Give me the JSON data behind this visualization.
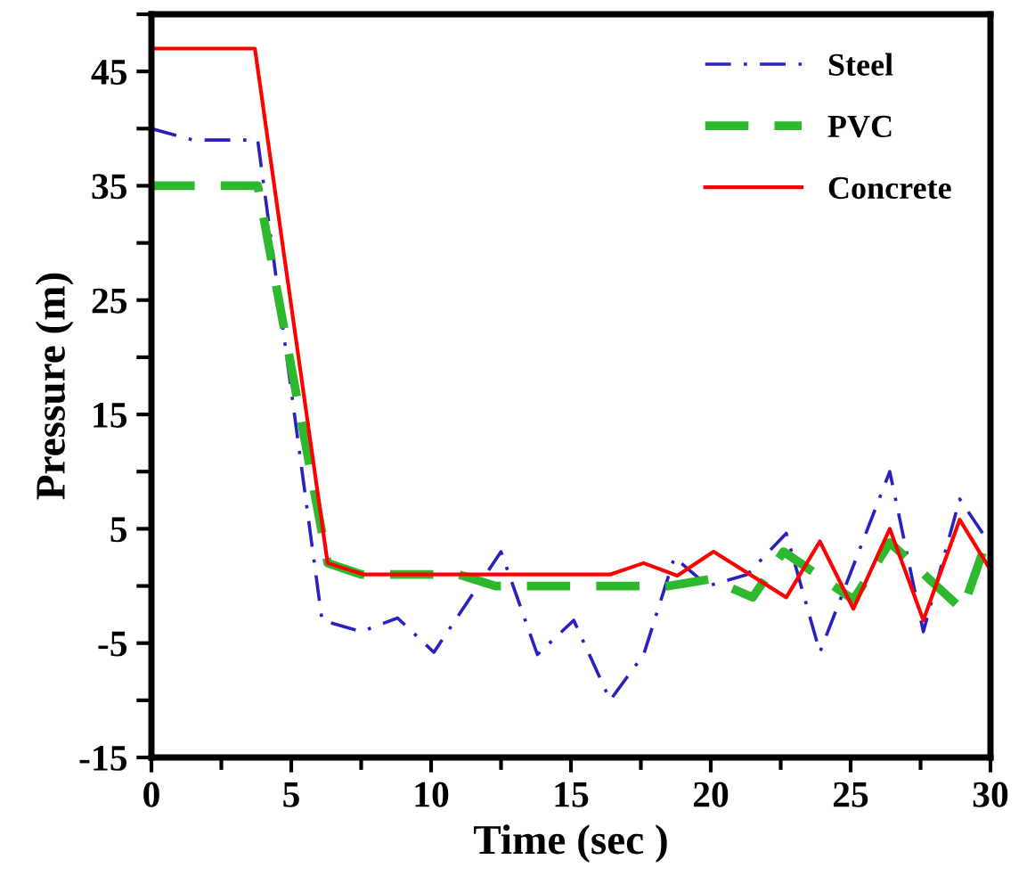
{
  "chart_data": {
    "type": "line",
    "xlabel": "Time (sec )",
    "ylabel": "Pressure (m)",
    "xlim": [
      0,
      30
    ],
    "xticks": [
      0,
      5,
      10,
      15,
      20,
      25,
      30
    ],
    "ylim": [
      -15,
      50
    ],
    "yticks": [
      -15,
      {
        "value": -10,
        "label": null
      },
      -5,
      {
        "value": 0,
        "label": null
      },
      5,
      {
        "value": 10,
        "label": null
      },
      15,
      {
        "value": 20,
        "label": null
      },
      25,
      {
        "value": 30,
        "label": null
      },
      35,
      {
        "value": 40,
        "label": null
      },
      45,
      {
        "value": 50,
        "label": null
      }
    ],
    "grid": false,
    "legend": "top right",
    "marker": "none",
    "series": [
      {
        "name": "Steel",
        "color": "#2b1fc0",
        "line_style": "dashdot",
        "x": [
          0,
          1.5,
          3.8,
          6.1,
          7.5,
          8.8,
          10.1,
          12.5,
          13.8,
          15.1,
          16.4,
          17.6,
          18.7,
          19.9,
          21.3,
          22.7,
          23.9,
          26.4,
          27.6,
          28.9,
          30
        ],
        "values": [
          40,
          39,
          39,
          -3,
          -4,
          -2.8,
          -5.8,
          3,
          -6,
          -3,
          -10,
          -6,
          2.5,
          0,
          1,
          4.6,
          -5.8,
          10,
          -4,
          7.6,
          3.6
        ]
      },
      {
        "name": "PVC",
        "color": "#2eb82e",
        "line_style": "dashed",
        "x": [
          0,
          3.8,
          6.3,
          7.5,
          11,
          12.3,
          18.5,
          20,
          21.5,
          22.6,
          25.1,
          26.4,
          29,
          30
        ],
        "values": [
          35,
          35,
          2,
          1,
          1,
          0,
          0,
          0.6,
          -1,
          3,
          -1.2,
          3.8,
          -2.1,
          4.9
        ]
      },
      {
        "name": "Concrete",
        "color": "#ff0000",
        "line_style": "solid",
        "x": [
          0,
          3.7,
          6.3,
          7.6,
          16.4,
          17.6,
          18.8,
          20.1,
          22.7,
          23.9,
          25.1,
          26.4,
          27.6,
          28.9,
          30
        ],
        "values": [
          47,
          47,
          2,
          1,
          1,
          2,
          0.9,
          3,
          -1,
          3.9,
          -2,
          5,
          -3,
          5.8,
          1.4
        ]
      }
    ]
  }
}
